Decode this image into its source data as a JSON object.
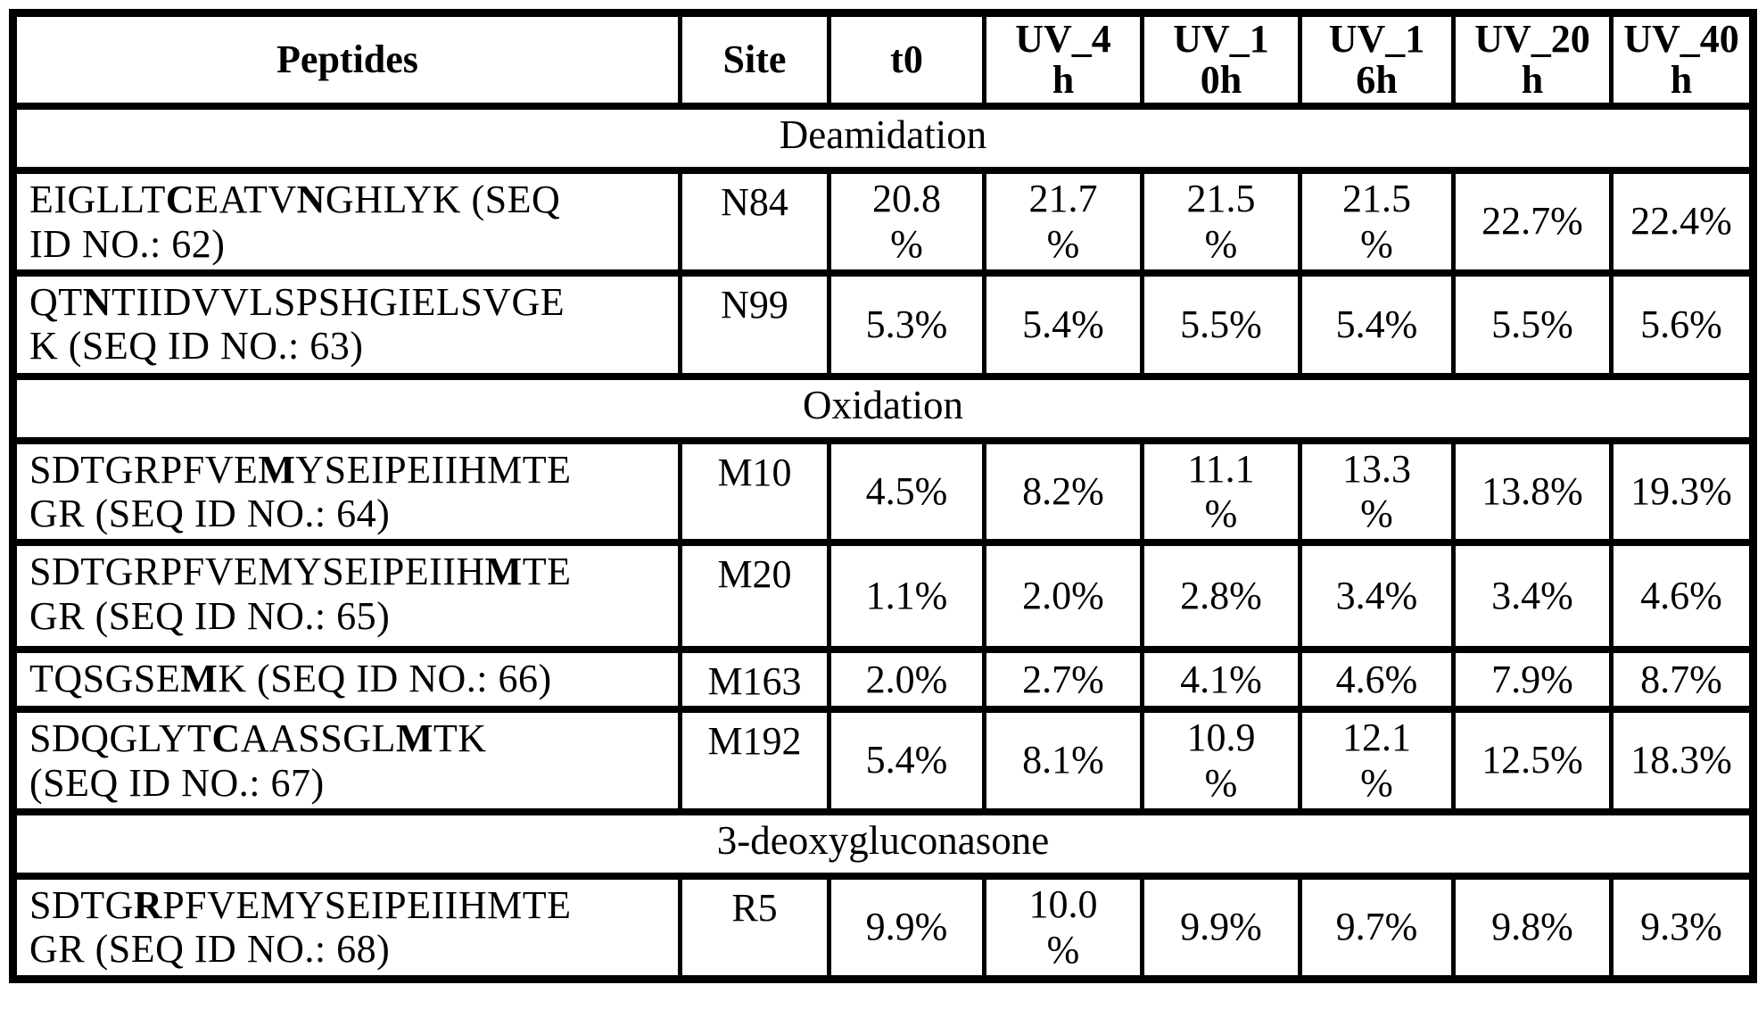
{
  "colors": {
    "background": "#ffffff",
    "border": "#000000",
    "text": "#000000"
  },
  "table": {
    "columns": [
      "Peptides",
      "Site",
      "t0",
      "UV_4\nh",
      "UV_1\n0h",
      "UV_1\n6h",
      "UV_20\nh",
      "UV_40\nh"
    ],
    "sections": [
      {
        "label": "Deamidation",
        "rows": [
          {
            "peptide_parts": [
              {
                "t": "EIGLLT"
              },
              {
                "t": "C",
                "bold": true
              },
              {
                "t": "EATV"
              },
              {
                "t": "N",
                "bold": true
              },
              {
                "t": "GHLYK (SEQ\nID NO.: 62)"
              }
            ],
            "site": "N84",
            "values": [
              "20.8\n%",
              "21.7\n%",
              "21.5\n%",
              "21.5\n%",
              "22.7%",
              "22.4%"
            ]
          },
          {
            "peptide_parts": [
              {
                "t": "QT"
              },
              {
                "t": "N",
                "bold": true
              },
              {
                "t": "TIIDVVLSPSHGIELSVGE\nK (SEQ ID NO.: 63)"
              }
            ],
            "site": "N99",
            "values": [
              "5.3%",
              "5.4%",
              "5.5%",
              "5.4%",
              "5.5%",
              "5.6%"
            ]
          }
        ]
      },
      {
        "label": "Oxidation",
        "rows": [
          {
            "peptide_parts": [
              {
                "t": "SDTGRPFVE"
              },
              {
                "t": "M",
                "bold": true
              },
              {
                "t": "YSEIPEIIHMTE\nGR (SEQ ID NO.: 64)"
              }
            ],
            "site": "M10",
            "values": [
              "4.5%",
              "8.2%",
              "11.1\n%",
              "13.3\n%",
              "13.8%",
              "19.3%"
            ]
          },
          {
            "peptide_parts": [
              {
                "t": "SDTGRPFVEMYSEIPEIIH"
              },
              {
                "t": "M",
                "bold": true
              },
              {
                "t": "TE\nGR (SEQ ID NO.: 65)"
              }
            ],
            "site": "M20",
            "values": [
              "1.1%",
              "2.0%",
              "2.8%",
              "3.4%",
              "3.4%",
              "4.6%"
            ]
          },
          {
            "peptide_parts": [
              {
                "t": "TQSGSE"
              },
              {
                "t": "M",
                "bold": true
              },
              {
                "t": "K (SEQ ID NO.: 66)"
              }
            ],
            "site": "M163",
            "values": [
              "2.0%",
              "2.7%",
              "4.1%",
              "4.6%",
              "7.9%",
              "8.7%"
            ]
          },
          {
            "peptide_parts": [
              {
                "t": "SDQGLYT"
              },
              {
                "t": "C",
                "bold": true
              },
              {
                "t": "AASSGL"
              },
              {
                "t": "M",
                "bold": true
              },
              {
                "t": "TK\n(SEQ ID NO.: 67)"
              }
            ],
            "site": "M192",
            "values": [
              "5.4%",
              "8.1%",
              "10.9\n%",
              "12.1\n%",
              "12.5%",
              "18.3%"
            ]
          }
        ]
      },
      {
        "label": "3-deoxygluconasone",
        "rows": [
          {
            "peptide_parts": [
              {
                "t": "SDTG"
              },
              {
                "t": "R",
                "bold": true
              },
              {
                "t": "PFVEMYSEIPEIIHMTE\nGR (SEQ ID NO.: 68)"
              }
            ],
            "site": "R5",
            "values": [
              "9.9%",
              "10.0\n%",
              "9.9%",
              "9.7%",
              "9.8%",
              "9.3%"
            ]
          }
        ]
      }
    ]
  }
}
